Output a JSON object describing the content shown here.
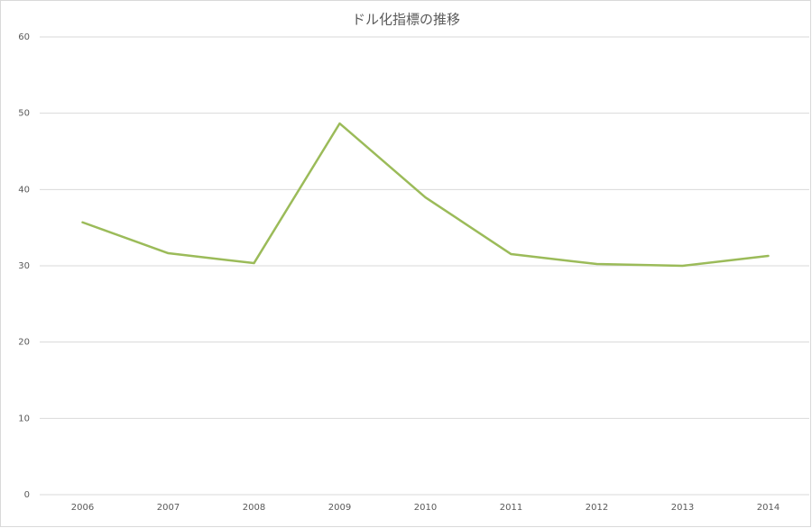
{
  "chart_data": {
    "type": "line",
    "title": "ドル化指標の推移",
    "categories": [
      "2006",
      "2007",
      "2008",
      "2009",
      "2010",
      "2011",
      "2012",
      "2013",
      "2014"
    ],
    "values": [
      35.7,
      31.65,
      30.35,
      48.66,
      38.97,
      31.53,
      30.23,
      30.0,
      31.3
    ],
    "color": "#9bbb59",
    "ylim": [
      0,
      60
    ],
    "yticks": [
      0,
      10,
      20,
      30,
      40,
      50,
      60
    ],
    "grid": true
  }
}
